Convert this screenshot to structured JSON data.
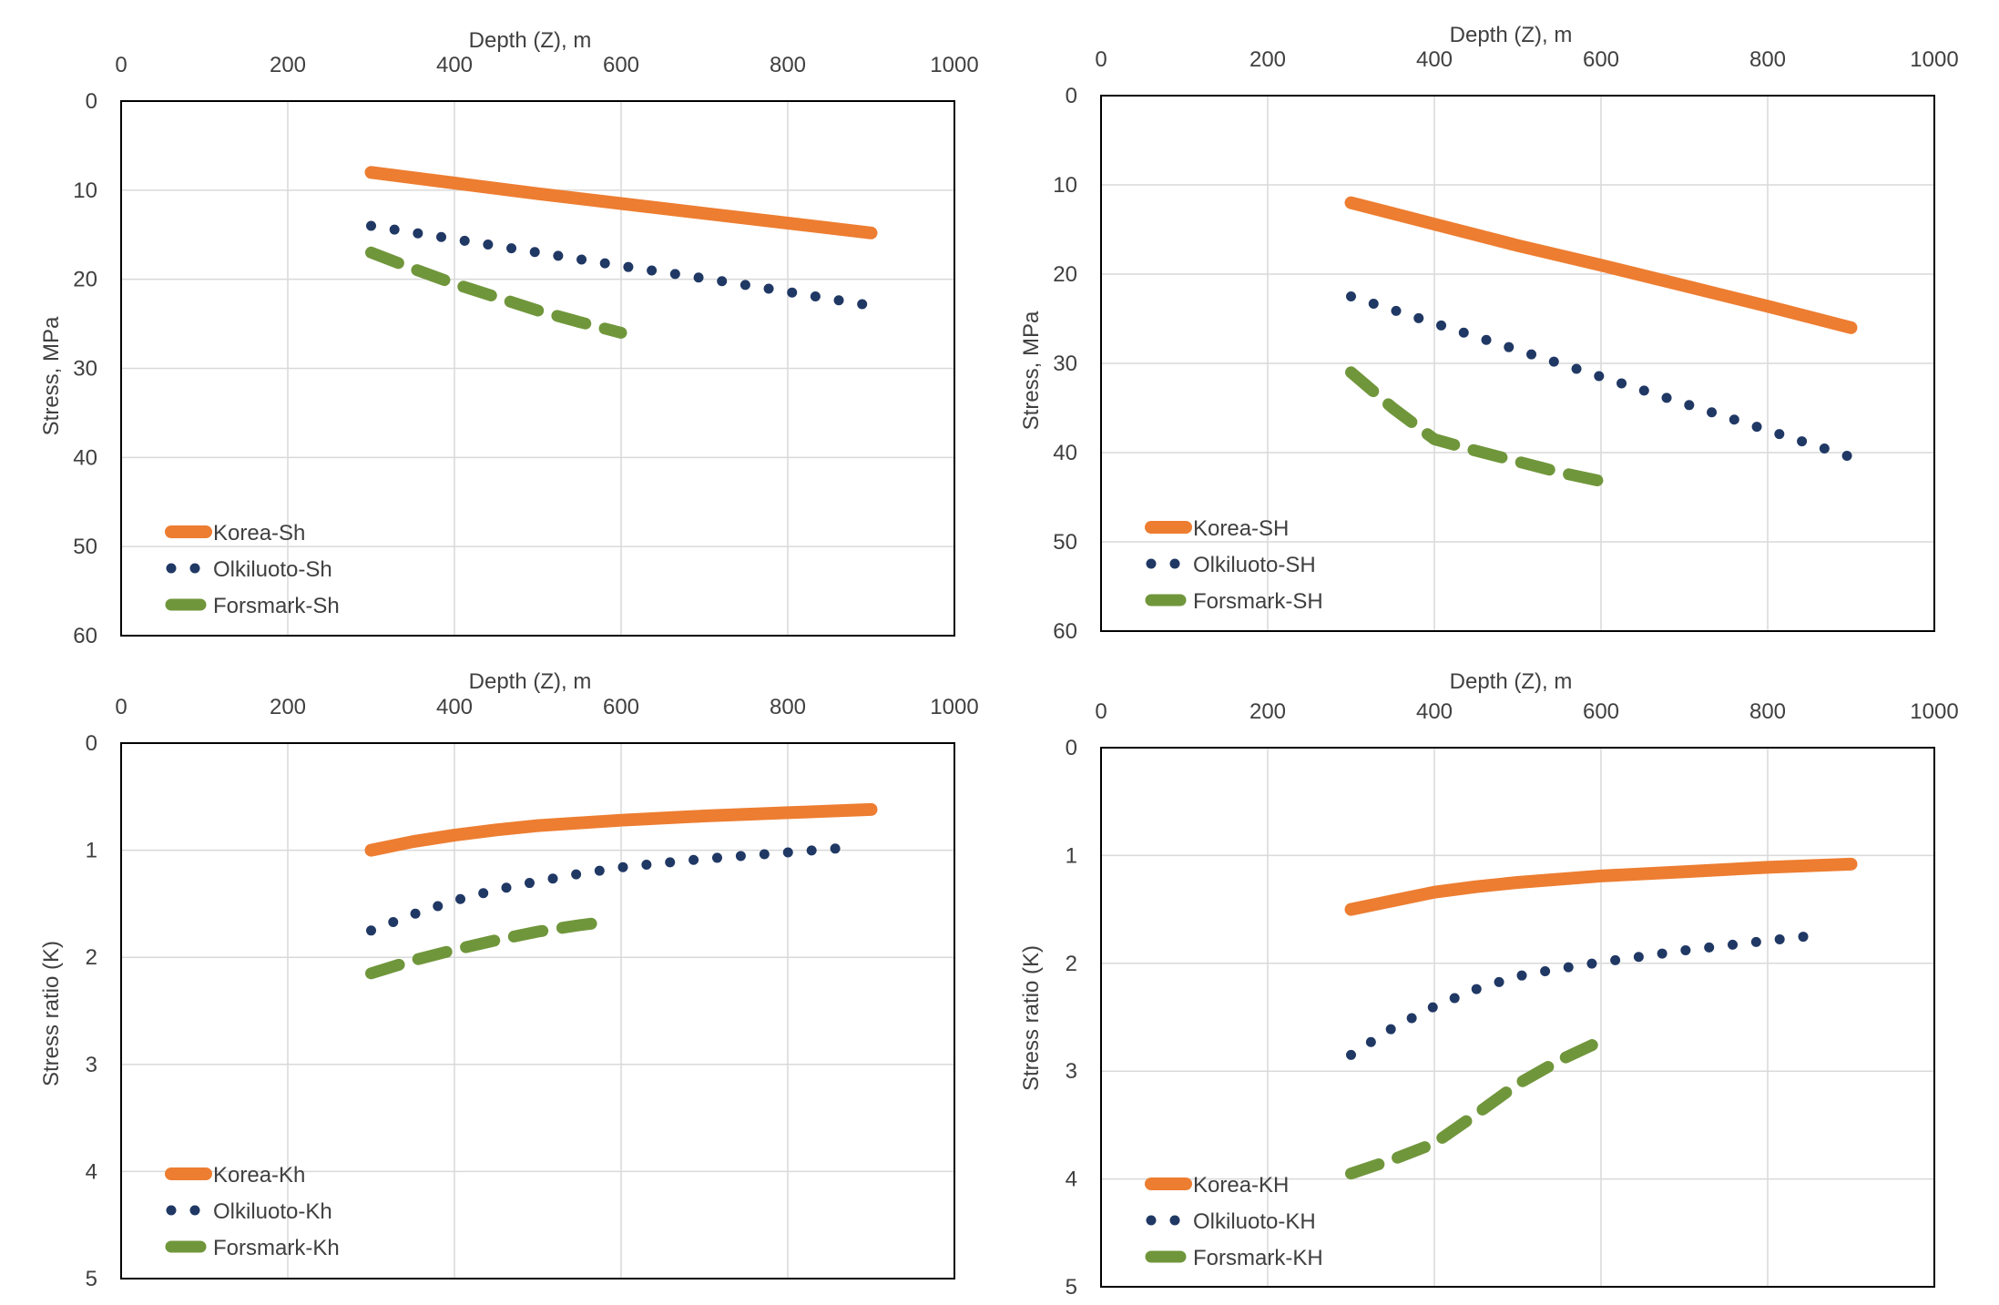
{
  "chart_data": [
    {
      "id": "tl",
      "type": "line",
      "xlabel": "Depth (Z), m",
      "ylabel": "Stress, MPa",
      "xlim": [
        0,
        1000
      ],
      "ylim": [
        0,
        60
      ],
      "y_inverted": true,
      "x_axis_position": "top",
      "x_ticks": [
        0,
        200,
        400,
        600,
        800,
        1000
      ],
      "y_ticks": [
        0,
        10,
        20,
        30,
        40,
        50,
        60
      ],
      "grid": true,
      "legend_position": "bottom-left",
      "series": [
        {
          "name": "Korea-Sh",
          "style": "solid",
          "color": "#ed7d31",
          "x": [
            300,
            400,
            500,
            600,
            700,
            800,
            900
          ],
          "y": [
            8.0,
            9.2,
            10.4,
            11.5,
            12.6,
            13.7,
            14.8
          ]
        },
        {
          "name": "Olkiluoto-Sh",
          "style": "dotted",
          "color": "#203864",
          "x": [
            300,
            400,
            500,
            600,
            700,
            800,
            890
          ],
          "y": [
            14.0,
            15.5,
            17.0,
            18.5,
            19.9,
            21.4,
            22.8
          ]
        },
        {
          "name": "Forsmark-Sh",
          "style": "dashed",
          "color": "#70963b",
          "x": [
            300,
            350,
            400,
            450,
            500,
            550,
            600
          ],
          "y": [
            17.0,
            18.8,
            20.5,
            22.0,
            23.5,
            24.8,
            26.0
          ]
        }
      ]
    },
    {
      "id": "tr",
      "type": "line",
      "xlabel": "Depth (Z), m",
      "ylabel": "Stress, MPa",
      "xlim": [
        0,
        1000
      ],
      "ylim": [
        0,
        60
      ],
      "y_inverted": true,
      "x_axis_position": "top",
      "x_ticks": [
        0,
        200,
        400,
        600,
        800,
        1000
      ],
      "y_ticks": [
        0,
        10,
        20,
        30,
        40,
        50,
        60
      ],
      "grid": true,
      "legend_position": "bottom-left",
      "series": [
        {
          "name": "Korea-SH",
          "style": "solid",
          "color": "#ed7d31",
          "x": [
            300,
            400,
            500,
            600,
            700,
            800,
            900
          ],
          "y": [
            12.0,
            14.4,
            16.8,
            19.0,
            21.3,
            23.6,
            26.0
          ]
        },
        {
          "name": "Olkiluoto-SH",
          "style": "dotted",
          "color": "#203864",
          "x": [
            300,
            400,
            500,
            600,
            700,
            800,
            900
          ],
          "y": [
            22.5,
            25.5,
            28.5,
            31.5,
            34.5,
            37.5,
            40.5
          ]
        },
        {
          "name": "Forsmark-SH",
          "style": "dashed",
          "color": "#70963b",
          "x": [
            300,
            350,
            400,
            450,
            500,
            550,
            600
          ],
          "y": [
            31.0,
            35.0,
            38.5,
            39.8,
            41.0,
            42.2,
            43.2
          ]
        }
      ]
    },
    {
      "id": "bl",
      "type": "line",
      "xlabel": "Depth (Z), m",
      "ylabel": "Stress ratio (K)",
      "xlim": [
        0,
        1000
      ],
      "ylim": [
        0,
        5
      ],
      "y_inverted": true,
      "x_axis_position": "top",
      "x_ticks": [
        0,
        200,
        400,
        600,
        800,
        1000
      ],
      "y_ticks": [
        0,
        1,
        2,
        3,
        4,
        5
      ],
      "grid": true,
      "legend_position": "bottom-left",
      "series": [
        {
          "name": "Korea-Kh",
          "style": "solid",
          "color": "#ed7d31",
          "x": [
            300,
            350,
            400,
            450,
            500,
            600,
            700,
            800,
            900
          ],
          "y": [
            1.0,
            0.92,
            0.86,
            0.81,
            0.77,
            0.72,
            0.68,
            0.65,
            0.62
          ]
        },
        {
          "name": "Olkiluoto-Kh",
          "style": "dotted",
          "color": "#203864",
          "x": [
            300,
            350,
            400,
            450,
            500,
            550,
            600,
            700,
            800,
            880
          ],
          "y": [
            1.75,
            1.6,
            1.47,
            1.37,
            1.29,
            1.22,
            1.16,
            1.08,
            1.02,
            0.97
          ]
        },
        {
          "name": "Forsmark-Kh",
          "style": "dashed",
          "color": "#70963b",
          "x": [
            300,
            350,
            400,
            450,
            500,
            550,
            580
          ],
          "y": [
            2.15,
            2.03,
            1.93,
            1.84,
            1.76,
            1.7,
            1.67
          ]
        }
      ]
    },
    {
      "id": "br",
      "type": "line",
      "xlabel": "Depth (Z), m",
      "ylabel": "Stress ratio (K)",
      "xlim": [
        0,
        1000
      ],
      "ylim": [
        0,
        5
      ],
      "y_inverted": true,
      "x_axis_position": "top",
      "x_ticks": [
        0,
        200,
        400,
        600,
        800,
        1000
      ],
      "y_ticks": [
        0,
        1,
        2,
        3,
        4,
        5
      ],
      "grid": true,
      "legend_position": "bottom-left",
      "series": [
        {
          "name": "Korea-KH",
          "style": "solid",
          "color": "#ed7d31",
          "x": [
            300,
            350,
            400,
            450,
            500,
            600,
            700,
            800,
            900
          ],
          "y": [
            1.5,
            1.42,
            1.34,
            1.29,
            1.25,
            1.19,
            1.15,
            1.11,
            1.08
          ]
        },
        {
          "name": "Olkiluoto-KH",
          "style": "dotted",
          "color": "#203864",
          "x": [
            300,
            350,
            400,
            450,
            500,
            550,
            600,
            700,
            800,
            870
          ],
          "y": [
            2.85,
            2.6,
            2.4,
            2.24,
            2.12,
            2.05,
            1.99,
            1.88,
            1.79,
            1.73
          ]
        },
        {
          "name": "Forsmark-KH",
          "style": "dashed",
          "color": "#70963b",
          "x": [
            300,
            350,
            400,
            450,
            500,
            550,
            600
          ],
          "y": [
            3.95,
            3.82,
            3.67,
            3.4,
            3.12,
            2.9,
            2.72
          ]
        }
      ]
    }
  ]
}
